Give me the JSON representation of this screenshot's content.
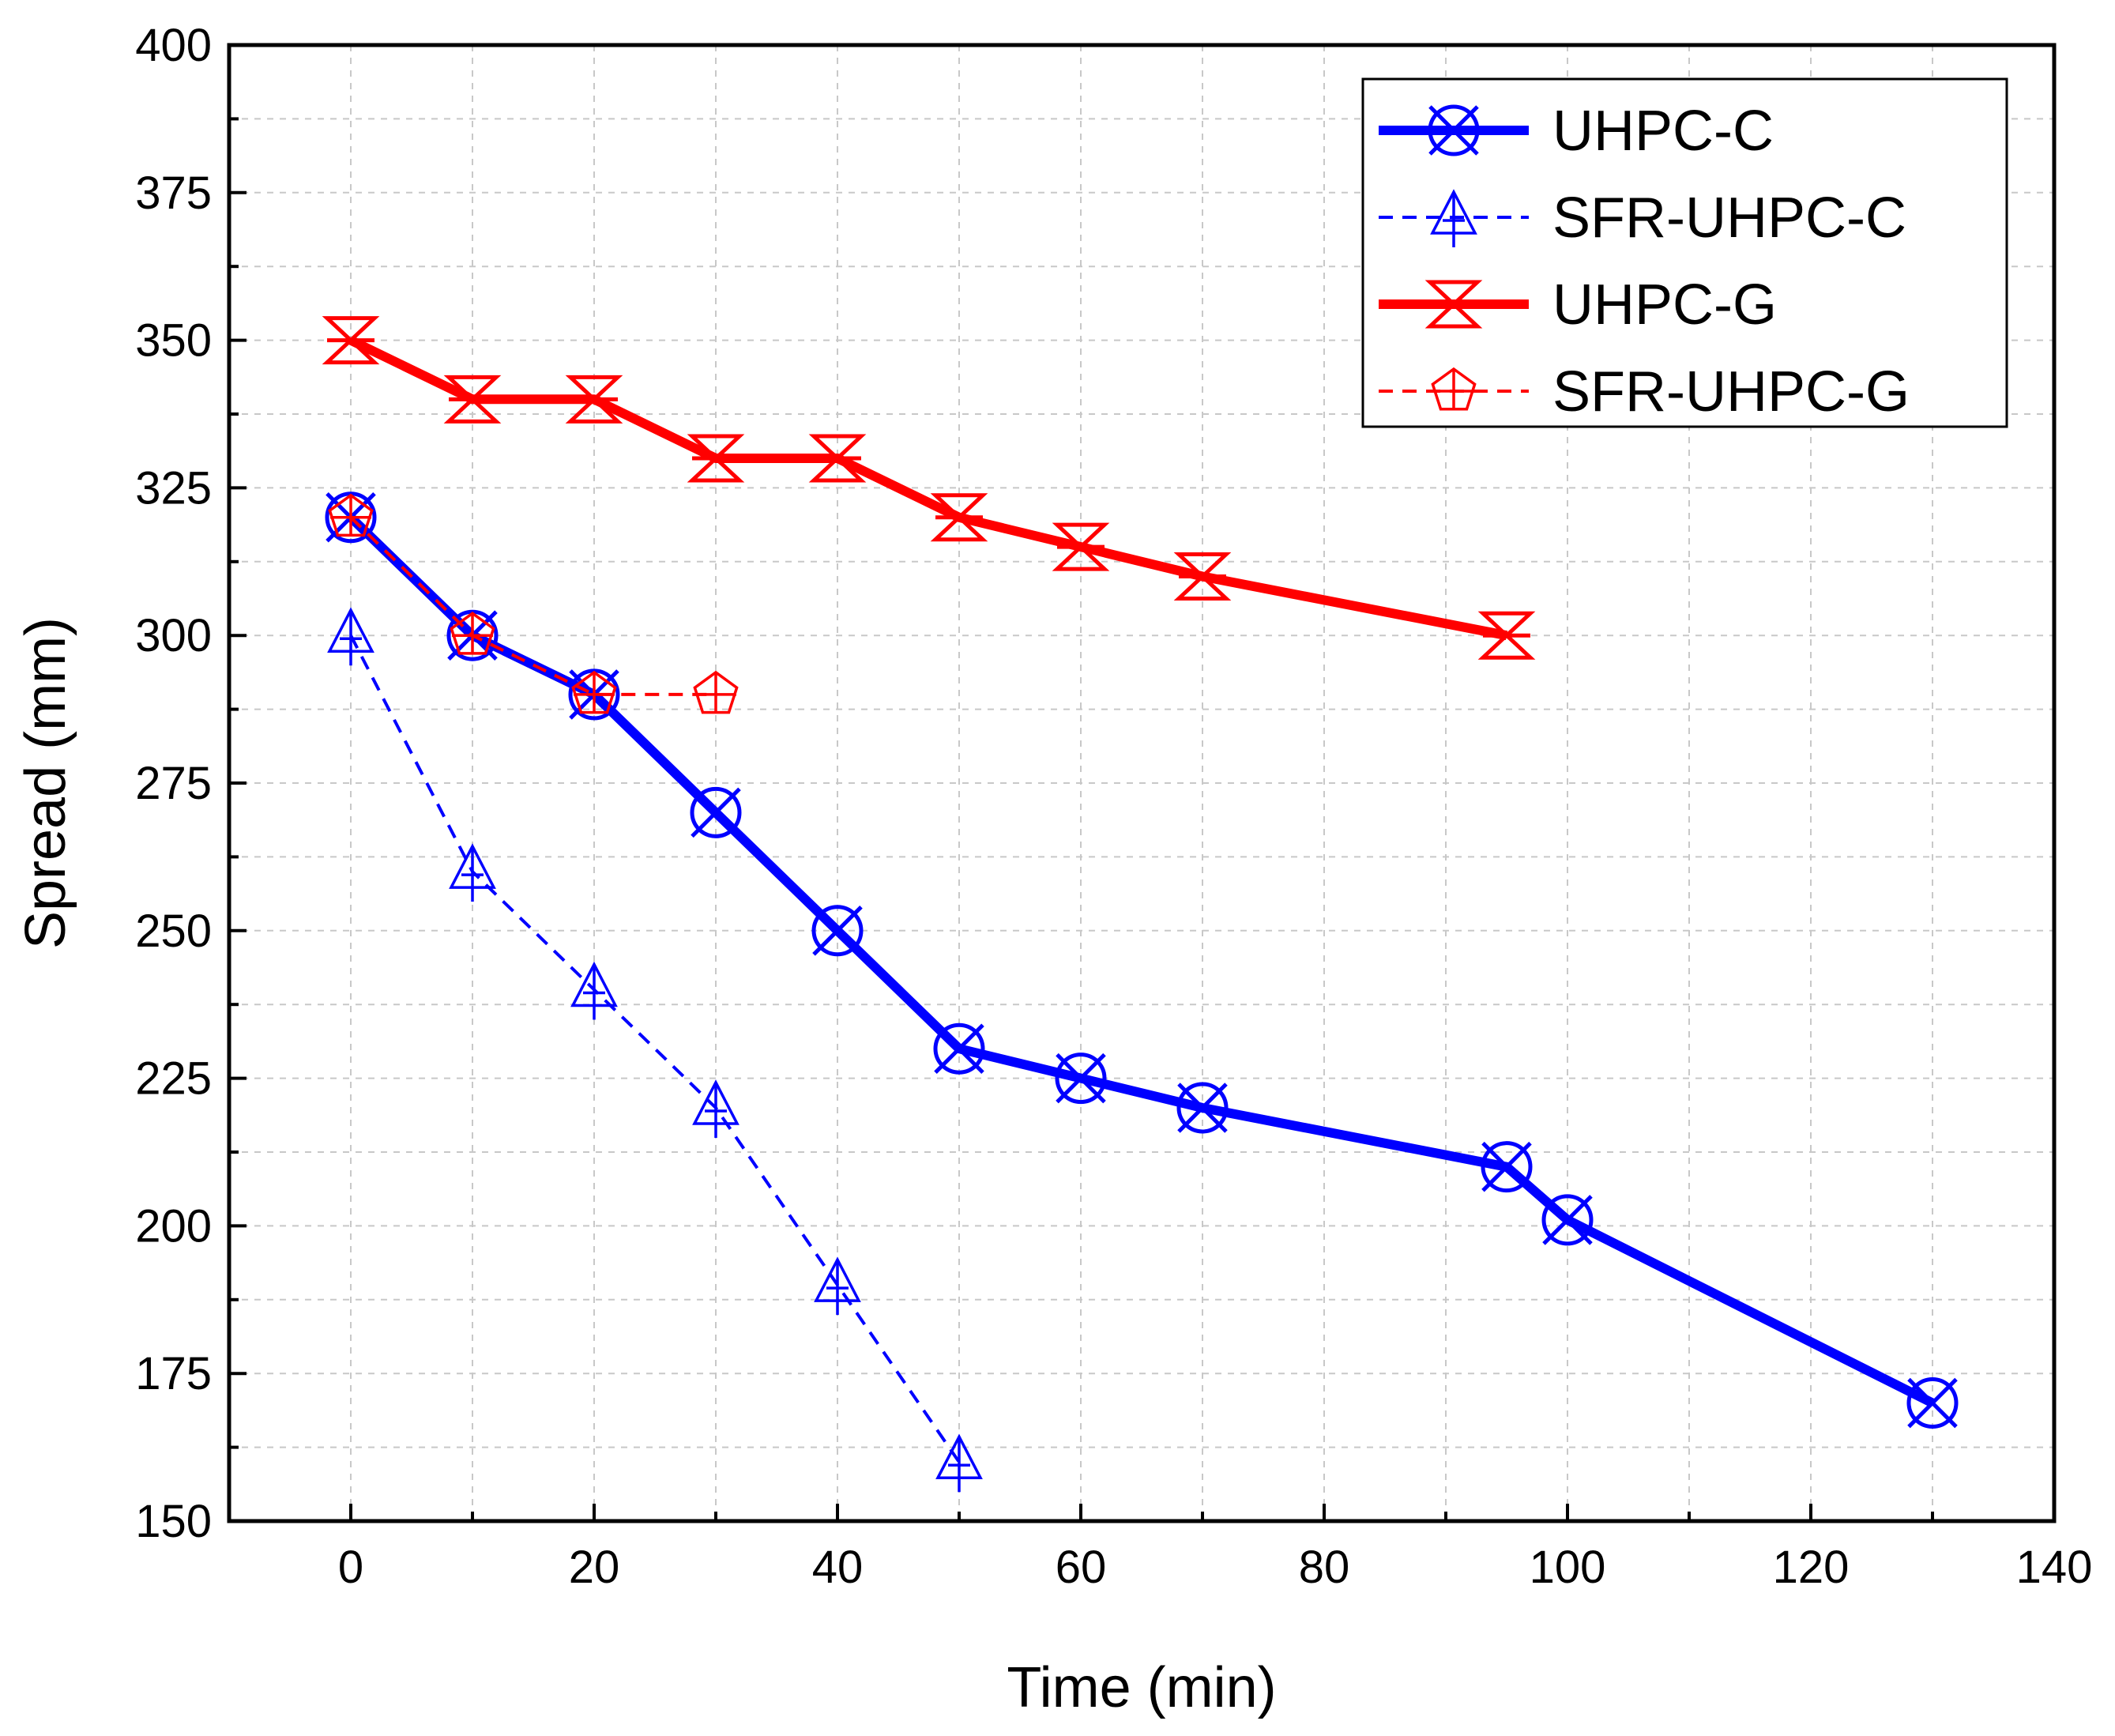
{
  "chart_data": {
    "type": "line",
    "title": "",
    "xlabel": "Time (min)",
    "ylabel": "Spread (mm)",
    "xlim": [
      -10,
      140
    ],
    "ylim": [
      150,
      400
    ],
    "xticks": [
      0,
      20,
      40,
      60,
      80,
      100,
      120,
      140
    ],
    "yticks": [
      150,
      175,
      200,
      225,
      250,
      275,
      300,
      325,
      350,
      375,
      400
    ],
    "grid": true,
    "legend_position": "top-right",
    "series": [
      {
        "name": "UHPC-C",
        "color": "#0000ff",
        "line_style": "solid",
        "marker": "circle-x",
        "x": [
          0,
          10,
          20,
          30,
          40,
          50,
          60,
          70,
          95,
          100,
          130
        ],
        "y": [
          320,
          300,
          290,
          270,
          250,
          230,
          225,
          220,
          210,
          201,
          170
        ]
      },
      {
        "name": "SFR-UHPC-C",
        "color": "#0000ff",
        "line_style": "dashed",
        "marker": "triangle-plus",
        "x": [
          0,
          10,
          20,
          30,
          40,
          50
        ],
        "y": [
          300,
          260,
          240,
          220,
          190,
          160
        ]
      },
      {
        "name": "UHPC-G",
        "color": "#ff0000",
        "line_style": "solid",
        "marker": "hourglass-x",
        "x": [
          0,
          10,
          20,
          30,
          40,
          50,
          60,
          70,
          95
        ],
        "y": [
          350,
          340,
          340,
          330,
          330,
          320,
          315,
          310,
          300
        ]
      },
      {
        "name": "SFR-UHPC-G",
        "color": "#ff0000",
        "line_style": "dashed",
        "marker": "pentagon-plus",
        "x": [
          0,
          10,
          20,
          30
        ],
        "y": [
          320,
          300,
          290,
          290
        ]
      }
    ]
  }
}
